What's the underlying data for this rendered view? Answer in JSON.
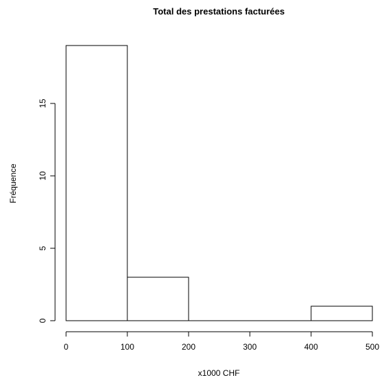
{
  "chart_data": {
    "type": "bar",
    "subtype": "histogram",
    "title": "Total des prestations facturées",
    "xlabel": "x1000 CHF",
    "ylabel": "Fréquence",
    "bins": [
      {
        "start": 0,
        "end": 100,
        "count": 19
      },
      {
        "start": 100,
        "end": 200,
        "count": 3
      },
      {
        "start": 200,
        "end": 300,
        "count": 0
      },
      {
        "start": 300,
        "end": 400,
        "count": 0
      },
      {
        "start": 400,
        "end": 500,
        "count": 1
      }
    ],
    "xlim": [
      0,
      500
    ],
    "ylim": [
      0,
      19
    ],
    "x_ticks": [
      0,
      100,
      200,
      300,
      400,
      500
    ],
    "y_ticks": [
      0,
      5,
      10,
      15
    ],
    "grid": false,
    "legend": "none",
    "colors": {
      "bar_fill": "#ffffff",
      "bar_stroke": "#000000"
    }
  }
}
